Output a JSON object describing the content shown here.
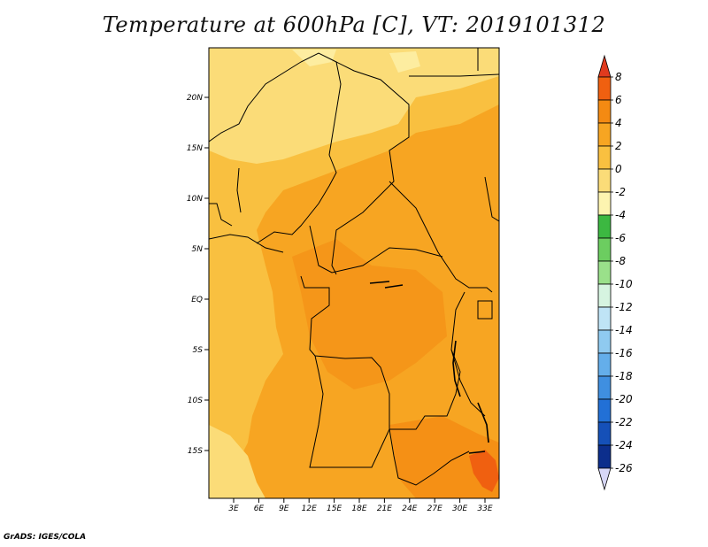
{
  "title": "Temperature at 600hPa [C], VT: 2019101312",
  "credit": "GrADS: IGES/COLA",
  "map": {
    "lat_labels": [
      "20N",
      "15N",
      "10N",
      "5N",
      "EQ",
      "5S",
      "10S",
      "15S"
    ],
    "lon_labels": [
      "3E",
      "6E",
      "9E",
      "12E",
      "15E",
      "18E",
      "21E",
      "24E",
      "27E",
      "30E",
      "33E"
    ]
  },
  "colorbar": {
    "levels": [
      "8",
      "6",
      "4",
      "2",
      "0",
      "-2",
      "-4",
      "-6",
      "-8",
      "-10",
      "-12",
      "-14",
      "-16",
      "-18",
      "-20",
      "-22",
      "-24",
      "-26"
    ],
    "colors": [
      "#e03a1e",
      "#f06010",
      "#f48a12",
      "#f7a522",
      "#f9c040",
      "#fbdc78",
      "#fdf4b0",
      "#3cb841",
      "#6ccd60",
      "#9ae08a",
      "#d6f4e0",
      "#bfe4f6",
      "#8fcaf0",
      "#64aeea",
      "#3f8fe0",
      "#2270d6",
      "#1550b8",
      "#0c2e8c",
      "#071270",
      "#d7d7f7"
    ]
  }
}
